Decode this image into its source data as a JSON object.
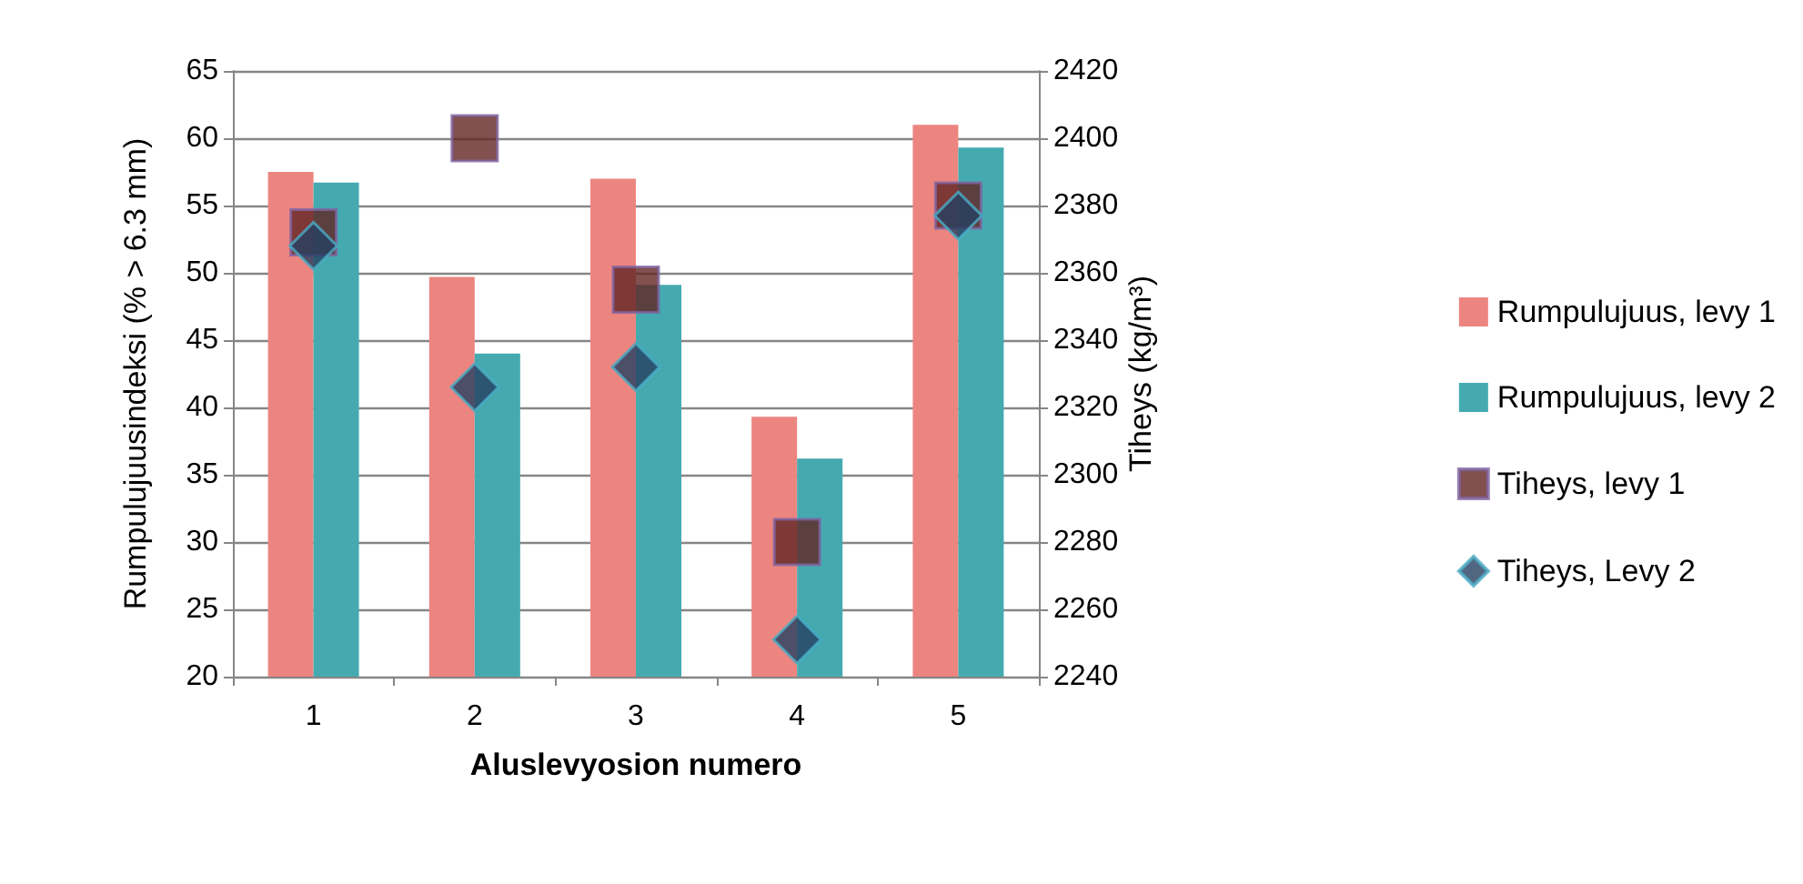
{
  "chart_data": {
    "type": "bar",
    "xlabel": "Aluslevyosion numero",
    "ylabel": "Rumpulujuusindeksi (% > 6.3 mm)",
    "y2label": "Tiheys (kg/m³)",
    "categories": [
      "1",
      "2",
      "3",
      "4",
      "5"
    ],
    "series": [
      {
        "name": "Rumpulujuus, levy 1",
        "color": "#ec8580",
        "values": [
          57.5,
          49.7,
          57,
          39.3,
          61
        ]
      },
      {
        "name": "Rumpulujuus, levy 2",
        "color": "#44aab0",
        "values": [
          56.7,
          44,
          49.1,
          36.2,
          59.3
        ]
      },
      {
        "name": "Tiheys, levy 1",
        "type": "scatter",
        "axis": "y2",
        "marker": "square",
        "color": "#632423",
        "x": [
          "1",
          "2",
          "3",
          "4",
          "5"
        ],
        "values": [
          2372,
          2400,
          2355,
          2280,
          2380
        ]
      },
      {
        "name": "Tiheys, Levy 2",
        "type": "scatter",
        "axis": "y2",
        "marker": "diamond",
        "color": "#254061",
        "x": [
          "1",
          "2",
          "3",
          "4",
          "5"
        ],
        "values": [
          2368,
          2326,
          2332,
          2251,
          2377
        ]
      }
    ],
    "ylim": [
      20,
      65
    ],
    "yticks": [
      20,
      25,
      30,
      35,
      40,
      45,
      50,
      55,
      60,
      65
    ],
    "y2lim": [
      2240,
      2420
    ],
    "y2ticks": [
      2240,
      2260,
      2280,
      2300,
      2320,
      2340,
      2360,
      2380,
      2400,
      2420
    ],
    "grid": "y",
    "legend": "right"
  }
}
